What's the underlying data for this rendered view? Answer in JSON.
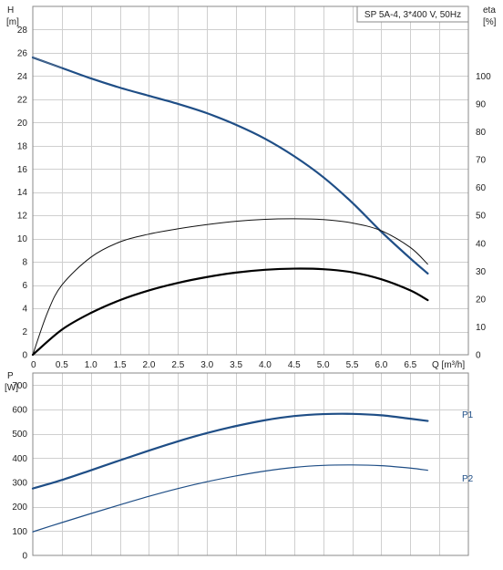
{
  "chart_data": [
    {
      "type": "line",
      "title": "SP 5A-4, 3*400 V, 50Hz",
      "xlabel": "Q [m³/h]",
      "ylabel_left": {
        "symbol": "H",
        "unit": "[m]"
      },
      "ylabel_right": {
        "symbol": "eta",
        "unit": "[%]"
      },
      "xlim": [
        0,
        7.5
      ],
      "ylim_left": [
        0,
        30
      ],
      "ylim_right": [
        0,
        125
      ],
      "x_ticks": [
        "0",
        "0.5",
        "1.0",
        "1.5",
        "2.0",
        "2.5",
        "3.0",
        "3.5",
        "4.0",
        "4.5",
        "5.0",
        "5.5",
        "6.0",
        "6.5"
      ],
      "y_ticks_left": [
        "0",
        "2",
        "4",
        "6",
        "8",
        "10",
        "12",
        "14",
        "16",
        "18",
        "20",
        "22",
        "24",
        "26",
        "28"
      ],
      "y_ticks_right": [
        "0",
        "10",
        "20",
        "30",
        "40",
        "50",
        "60",
        "70",
        "80",
        "90",
        "100"
      ],
      "grid": true,
      "series": [
        {
          "axis": "left",
          "color": "#1f4e86",
          "x": [
            0,
            0.5,
            1.0,
            1.5,
            2.0,
            2.5,
            3.0,
            3.5,
            4.0,
            4.5,
            5.0,
            5.5,
            6.0,
            6.5,
            6.8
          ],
          "values": [
            25.6,
            24.7,
            23.8,
            23.0,
            22.3,
            21.6,
            20.8,
            19.8,
            18.6,
            17.1,
            15.3,
            13.1,
            10.6,
            8.3,
            7.0
          ]
        },
        {
          "axis": "right",
          "color": "#111111",
          "x": [
            0,
            0.25,
            0.5,
            1.0,
            1.5,
            2.0,
            2.5,
            3.0,
            3.5,
            4.0,
            4.5,
            5.0,
            5.5,
            6.0,
            6.5,
            6.8
          ],
          "values": [
            0,
            15,
            25,
            35,
            40.5,
            43.3,
            45.2,
            46.7,
            47.9,
            48.6,
            48.8,
            48.5,
            47.3,
            44.5,
            38.5,
            32.5
          ]
        },
        {
          "axis": "right",
          "color": "#000000",
          "x": [
            0,
            0.5,
            1.0,
            1.5,
            2.0,
            2.5,
            3.0,
            3.5,
            4.0,
            4.5,
            5.0,
            5.5,
            6.0,
            6.5,
            6.8
          ],
          "values": [
            0,
            9,
            15,
            19.6,
            23.1,
            25.8,
            27.9,
            29.5,
            30.5,
            30.9,
            30.7,
            29.6,
            27.1,
            23.1,
            19.6
          ]
        }
      ]
    },
    {
      "type": "line",
      "ylabel": {
        "symbol": "P",
        "unit": "[W]"
      },
      "xlim": [
        0,
        7.5
      ],
      "ylim": [
        0,
        750
      ],
      "y_ticks": [
        "0",
        "100",
        "200",
        "300",
        "400",
        "500",
        "600",
        "700"
      ],
      "grid": true,
      "series": [
        {
          "name": "P1",
          "color": "#1f4e86",
          "x": [
            0,
            0.5,
            1.0,
            1.5,
            2.0,
            2.5,
            3.0,
            3.5,
            4.0,
            4.5,
            5.0,
            5.5,
            6.0,
            6.5,
            6.8
          ],
          "values": [
            275,
            310,
            350,
            391,
            431,
            469,
            503,
            532,
            556,
            573,
            581,
            582,
            576,
            562,
            553
          ]
        },
        {
          "name": "P2",
          "color": "#1f4e86",
          "x": [
            0,
            0.5,
            1.0,
            1.5,
            2.0,
            2.5,
            3.0,
            3.5,
            4.0,
            4.5,
            5.0,
            5.5,
            6.0,
            6.5,
            6.8
          ],
          "values": [
            97,
            135,
            172,
            208,
            243,
            275,
            303,
            327,
            347,
            362,
            370,
            372,
            369,
            359,
            350
          ]
        }
      ]
    }
  ]
}
